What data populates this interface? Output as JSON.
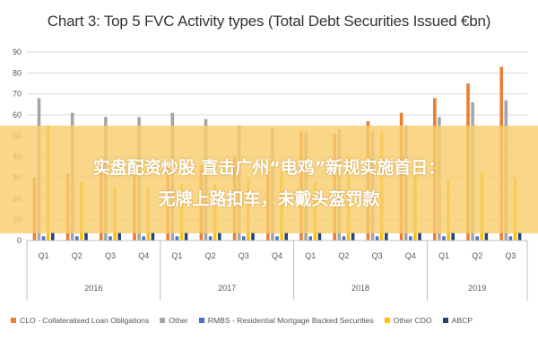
{
  "chart_data": {
    "type": "bar",
    "title": "Chart 3: Top 5 FVC Activity types (Total Debt Securities Issued €bn)",
    "ylim": [
      0,
      90
    ],
    "yticks": [
      0,
      10,
      20,
      30,
      40,
      50,
      60,
      70,
      80,
      90
    ],
    "grid": true,
    "legend_position": "bottom",
    "categories": [
      "Q1",
      "Q2",
      "Q3",
      "Q4",
      "Q1",
      "Q2",
      "Q3",
      "Q4",
      "Q1",
      "Q2",
      "Q3",
      "Q4",
      "Q1",
      "Q2",
      "Q3"
    ],
    "groups": [
      {
        "label": "2016",
        "count": 4
      },
      {
        "label": "2017",
        "count": 4
      },
      {
        "label": "2018",
        "count": 4
      },
      {
        "label": "2019",
        "count": 3
      }
    ],
    "series": [
      {
        "name": "CLO - Collateralised Loan Obligations",
        "color": "#ed7d31",
        "values": [
          30,
          32,
          35,
          37,
          35,
          36,
          40,
          33,
          52,
          51,
          57,
          61,
          68,
          75,
          83
        ]
      },
      {
        "name": "Other",
        "color": "#a5a5a5",
        "values": [
          68,
          61,
          59,
          59,
          61,
          58,
          55,
          54,
          52,
          53,
          52,
          55,
          59,
          66,
          67
        ]
      },
      {
        "name": "RMBS - Residential Mortgage Backed Securities",
        "color": "#4472c4",
        "values": [
          2,
          2,
          2,
          2,
          2,
          2,
          2,
          2,
          2,
          2,
          2,
          2,
          2,
          2,
          2
        ]
      },
      {
        "name": "Other CDO",
        "color": "#ffc000",
        "values": [
          55,
          28,
          25,
          26,
          27,
          27,
          30,
          34,
          28,
          40,
          52,
          35,
          29,
          32,
          30
        ]
      },
      {
        "name": "ABCP",
        "color": "#264478",
        "values": [
          4,
          4,
          4,
          4,
          4,
          4,
          4,
          4,
          4,
          4,
          4,
          4,
          4,
          4,
          4
        ]
      }
    ]
  },
  "overlay": {
    "line1": "实盘配资炒股 直击广州“电鸡”新规实施首日：",
    "line2": "无牌上路扣车，未戴头盔罚款"
  }
}
